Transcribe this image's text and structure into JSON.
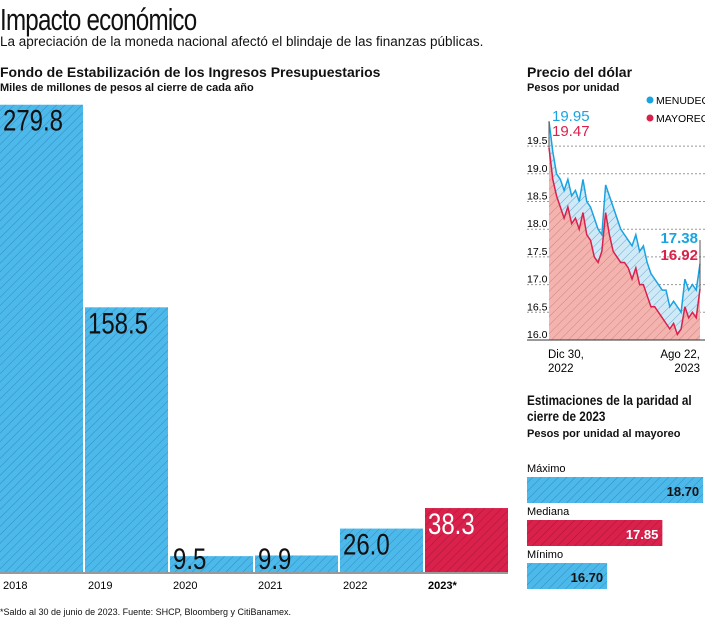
{
  "header": {
    "title": "Impacto económico",
    "subtitle": "La apreciación de la moneda nacional afectó el blindaje de las finanzas públicas."
  },
  "colors": {
    "blue": "#4db8ea",
    "red": "#d9214b",
    "blue_line": "#1aa3e0",
    "pink_fill": "#f4b3ae"
  },
  "chart_data": [
    {
      "type": "bar",
      "title": "Fondo de Estabilización de los Ingresos Presupuestarios",
      "subtitle": "Miles de millones de pesos al cierre de cada año",
      "categories": [
        "2018",
        "2019",
        "2020",
        "2021",
        "2022",
        "2023*"
      ],
      "values": [
        279.8,
        158.5,
        9.5,
        9.9,
        26.0,
        38.3
      ],
      "labels": [
        "279.8",
        "158.5",
        "9.5",
        "9.9",
        "26.0",
        "38.3"
      ],
      "highlight": "2023*"
    },
    {
      "type": "line",
      "title": "Precio del dólar",
      "subtitle": "Pesos por unidad",
      "series": [
        {
          "name": "MENUDEO",
          "values": [
            19.95,
            19.4,
            19.0,
            18.9,
            18.7,
            18.9,
            18.6,
            18.7,
            18.5,
            18.9,
            18.5,
            18.4,
            18.2,
            18.0,
            17.9,
            18.8,
            18.6,
            18.4,
            18.2,
            18.0,
            17.9,
            17.8,
            17.7,
            17.9,
            17.6,
            17.7,
            17.4,
            17.2,
            17.1,
            17.0,
            16.9,
            16.9,
            16.6,
            16.7,
            16.6,
            16.5,
            17.1,
            16.9,
            17.0,
            16.9,
            17.38
          ],
          "start_label": "19.95",
          "end_label": "17.38"
        },
        {
          "name": "MAYOREO",
          "values": [
            19.47,
            18.9,
            18.6,
            18.4,
            18.2,
            18.4,
            18.1,
            18.2,
            18.0,
            18.3,
            17.9,
            17.8,
            17.5,
            17.4,
            17.6,
            18.3,
            17.9,
            17.6,
            17.5,
            17.4,
            17.4,
            17.3,
            17.1,
            17.3,
            17.0,
            17.0,
            16.8,
            16.6,
            16.6,
            16.5,
            16.4,
            16.3,
            16.2,
            16.3,
            16.1,
            16.2,
            16.6,
            16.4,
            16.5,
            16.4,
            16.92
          ],
          "start_label": "19.47",
          "end_label": "16.92"
        }
      ],
      "yticks": [
        "19.5",
        "19.0",
        "18.5",
        "18.0",
        "17.5",
        "17.0",
        "16.5",
        "16.0"
      ],
      "ylim": [
        16.0,
        19.5
      ],
      "xlabels": [
        "Dic 30,\n2022",
        "Ago 22,\n2023"
      ],
      "legend": "top-right",
      "grid": true
    },
    {
      "type": "bar",
      "orientation": "horizontal",
      "title": "Estimaciones de la paridad al cierre de 2023",
      "subtitle": "Pesos por unidad al mayoreo",
      "categories": [
        "Máximo",
        "Mediana",
        "Mínimo"
      ],
      "values": [
        18.7,
        17.85,
        16.7
      ],
      "labels": [
        "18.70",
        "17.85",
        "16.70"
      ]
    }
  ],
  "footnote": "*Saldo al 30 de junio de 2023. Fuente: SHCP, Bloomberg y CitiBanamex."
}
